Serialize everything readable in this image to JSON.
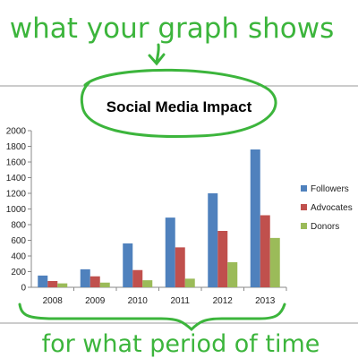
{
  "annotations": {
    "top_note": "what your graph shows",
    "bottom_note": "for what period of time",
    "annotation_color": "#3cb53c"
  },
  "chart_data": {
    "type": "bar",
    "title": "Social Media Impact",
    "categories": [
      "2008",
      "2009",
      "2010",
      "2011",
      "2012",
      "2013"
    ],
    "series": [
      {
        "name": "Followers",
        "color": "#4f81bd",
        "values": [
          150,
          230,
          560,
          890,
          1200,
          1760
        ]
      },
      {
        "name": "Advocates",
        "color": "#c0504d",
        "values": [
          80,
          140,
          220,
          510,
          720,
          920
        ]
      },
      {
        "name": "Donors",
        "color": "#9bbb59",
        "values": [
          50,
          60,
          90,
          110,
          320,
          630
        ]
      }
    ],
    "ylim": [
      0,
      2000
    ],
    "yticks": [
      "0",
      "200",
      "400",
      "600",
      "800",
      "1000",
      "1200",
      "1400",
      "1600",
      "1800",
      "2000"
    ],
    "grid": false,
    "legend_position": "right"
  }
}
